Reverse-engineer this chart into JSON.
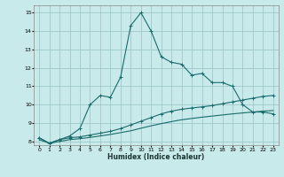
{
  "xlabel": "Humidex (Indice chaleur)",
  "ylabel": "",
  "xlim": [
    -0.5,
    23.5
  ],
  "ylim": [
    7.8,
    15.4
  ],
  "bg_color": "#c8eaea",
  "grid_color": "#a0c8c8",
  "line_color": "#1a6b6b",
  "line1_x": [
    0,
    1,
    2,
    3,
    4,
    5,
    6,
    7,
    8,
    9,
    10,
    11,
    12,
    13,
    14,
    15,
    16,
    17,
    18,
    19,
    20,
    21,
    22,
    23
  ],
  "line1_y": [
    8.2,
    7.9,
    8.1,
    8.3,
    8.7,
    10.0,
    10.5,
    10.4,
    11.5,
    14.3,
    15.0,
    14.0,
    12.6,
    12.3,
    12.2,
    11.6,
    11.7,
    11.2,
    11.2,
    11.0,
    10.0,
    9.6,
    9.6,
    9.5
  ],
  "line2_x": [
    0,
    1,
    2,
    3,
    4,
    5,
    6,
    7,
    8,
    9,
    10,
    11,
    12,
    13,
    14,
    15,
    16,
    17,
    18,
    19,
    20,
    21,
    22,
    23
  ],
  "line2_y": [
    8.2,
    7.9,
    8.1,
    8.2,
    8.25,
    8.35,
    8.45,
    8.55,
    8.7,
    8.9,
    9.1,
    9.3,
    9.5,
    9.65,
    9.75,
    9.82,
    9.88,
    9.95,
    10.05,
    10.15,
    10.25,
    10.35,
    10.45,
    10.5
  ],
  "line3_x": [
    0,
    1,
    2,
    3,
    4,
    5,
    6,
    7,
    8,
    9,
    10,
    11,
    12,
    13,
    14,
    15,
    16,
    17,
    18,
    19,
    20,
    21,
    22,
    23
  ],
  "line3_y": [
    8.1,
    7.9,
    8.0,
    8.1,
    8.15,
    8.22,
    8.3,
    8.38,
    8.48,
    8.58,
    8.72,
    8.85,
    8.97,
    9.08,
    9.18,
    9.25,
    9.32,
    9.38,
    9.44,
    9.5,
    9.55,
    9.6,
    9.65,
    9.68
  ],
  "xticks": [
    0,
    1,
    2,
    3,
    4,
    5,
    6,
    7,
    8,
    9,
    10,
    11,
    12,
    13,
    14,
    15,
    16,
    17,
    18,
    19,
    20,
    21,
    22,
    23
  ],
  "yticks": [
    8,
    9,
    10,
    11,
    12,
    13,
    14,
    15
  ]
}
